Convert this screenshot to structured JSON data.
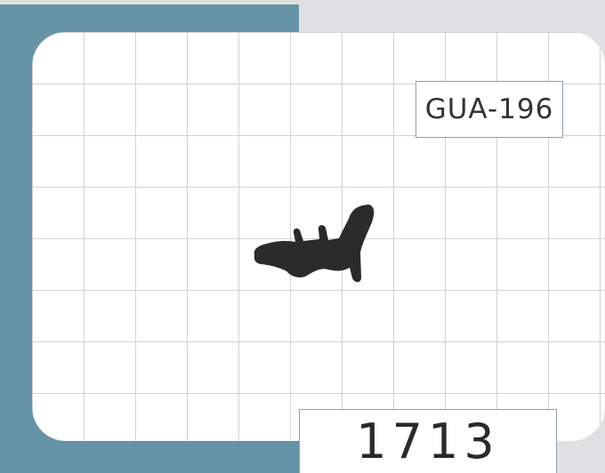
{
  "label": {
    "code": "GUA-196",
    "number": "1713"
  },
  "glyph": {
    "icon": "animal-glyph-icon",
    "color": "#2b2b2b"
  },
  "colors": {
    "page_bg": "#dfe0e2",
    "accent_panel": "#6793a8",
    "card_bg": "#ffffff",
    "grid_line": "#cfd3d8"
  }
}
